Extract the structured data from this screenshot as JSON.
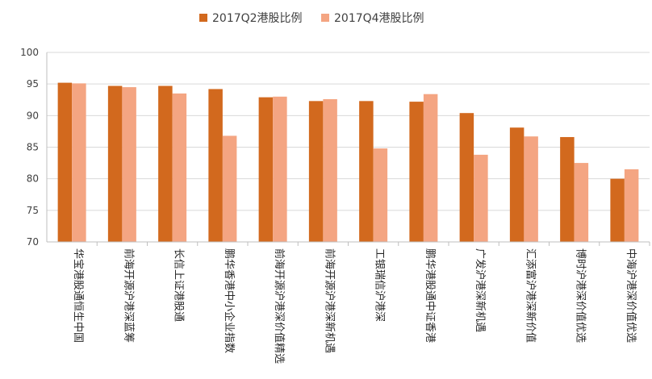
{
  "chart_data": {
    "type": "bar",
    "title": "",
    "xlabel": "",
    "ylabel": "",
    "ylim": [
      70,
      100
    ],
    "yticks": [
      70,
      75,
      80,
      85,
      90,
      95,
      100
    ],
    "grid": true,
    "legend_position": "top",
    "categories": [
      "华宝港股通恒生中国",
      "前海开源沪港深蓝筹",
      "长信上证港股通",
      "鹏华香港中小企业指数",
      "前海开源沪港深价值精选",
      "前海开源沪港深新机遇",
      "工银瑞信沪港深",
      "鹏华港股通中证香港",
      "广发沪港深新机遇",
      "汇添富沪港深新价值",
      "博时沪港深价值优选",
      "中海沪港深价值优选"
    ],
    "series": [
      {
        "name": "2017Q2港股比例",
        "color": "#D2691E",
        "values": [
          95.2,
          94.7,
          94.7,
          94.2,
          92.9,
          92.3,
          92.3,
          92.2,
          90.4,
          88.1,
          86.6,
          80.0
        ]
      },
      {
        "name": "2017Q4港股比例",
        "color": "#F4A582",
        "values": [
          95.1,
          94.5,
          93.5,
          86.8,
          93.0,
          92.6,
          84.8,
          93.4,
          83.8,
          86.7,
          82.5,
          81.5
        ]
      }
    ]
  }
}
